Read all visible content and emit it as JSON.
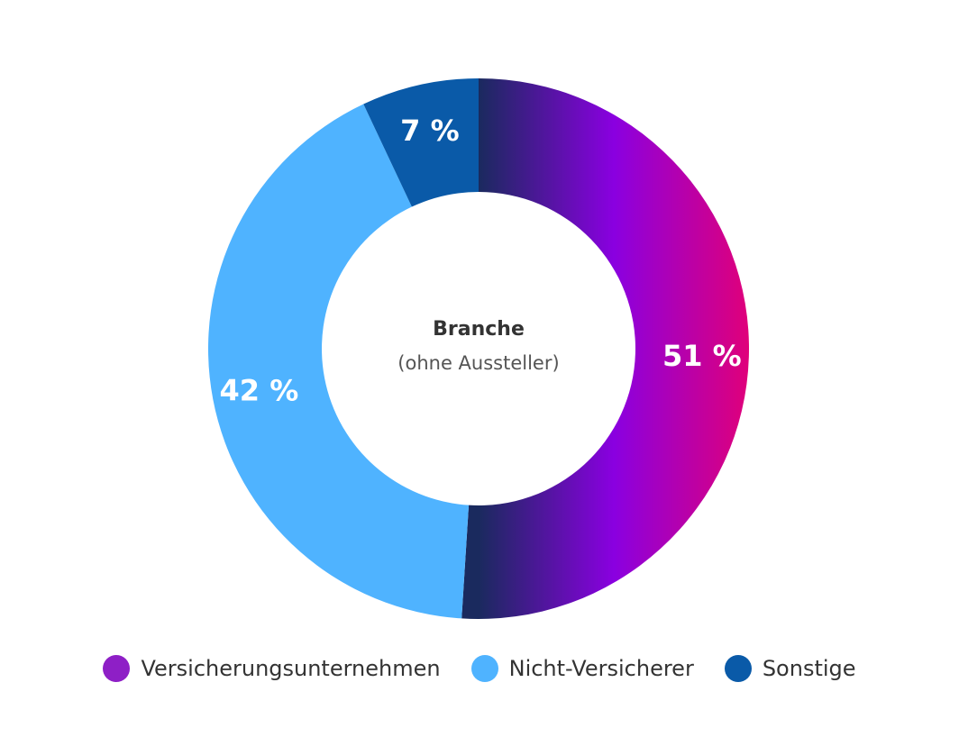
{
  "chart_data": {
    "type": "pie",
    "variant": "donut",
    "center_label": {
      "title": "Branche",
      "subtitle": "(ohne Aussteller)"
    },
    "slices": [
      {
        "name": "Versicherungsunternehmen",
        "value": 51,
        "label": "51 %",
        "color": "#8e1fc6",
        "gradient": [
          "#1a2a5e",
          "#8a00e0",
          "#e0007a"
        ]
      },
      {
        "name": "Nicht-Versicherer",
        "value": 42,
        "label": "42 %",
        "color": "#4fb3ff"
      },
      {
        "name": "Sonstige",
        "value": 7,
        "label": "7 %",
        "color": "#0a5aa8"
      }
    ],
    "legend_position": "bottom"
  }
}
